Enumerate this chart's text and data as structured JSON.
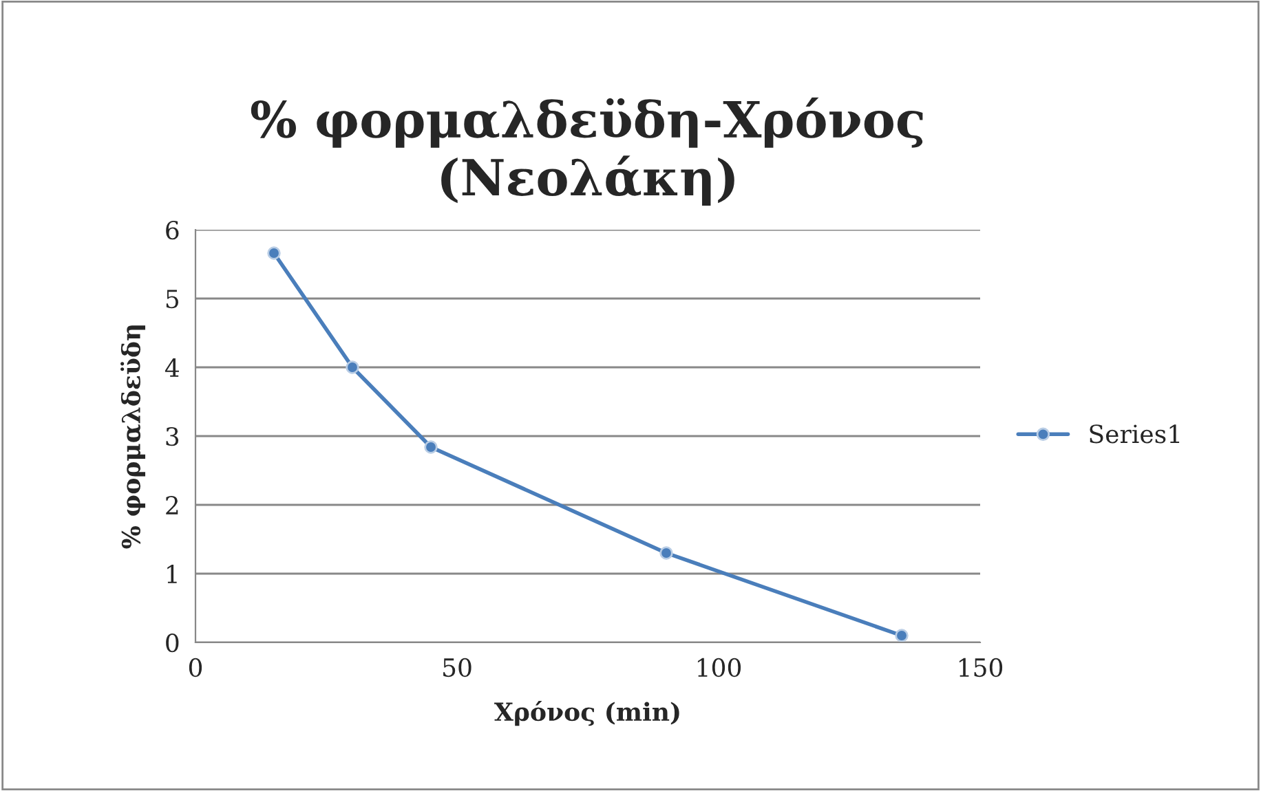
{
  "chart_data": {
    "type": "line",
    "title": "% φορμαλδεϋδη-Χρόνος\n(Νεολάκη)",
    "xlabel": "Χρόνος (min)",
    "ylabel": "% φορμαλδεϋδη",
    "x": [
      15,
      30,
      45,
      90,
      135
    ],
    "series": [
      {
        "name": "Series1",
        "color": "#4a7ebb",
        "values": [
          5.66,
          4.0,
          2.84,
          1.3,
          0.1
        ]
      }
    ],
    "xlim": [
      0,
      150
    ],
    "xticks": [
      0,
      50,
      100,
      150
    ],
    "ylim": [
      0,
      6
    ],
    "yticks": [
      0,
      1,
      2,
      3,
      4,
      5,
      6
    ],
    "grid": "y",
    "legend": "right",
    "marker": "circle",
    "line_style": "solid"
  }
}
